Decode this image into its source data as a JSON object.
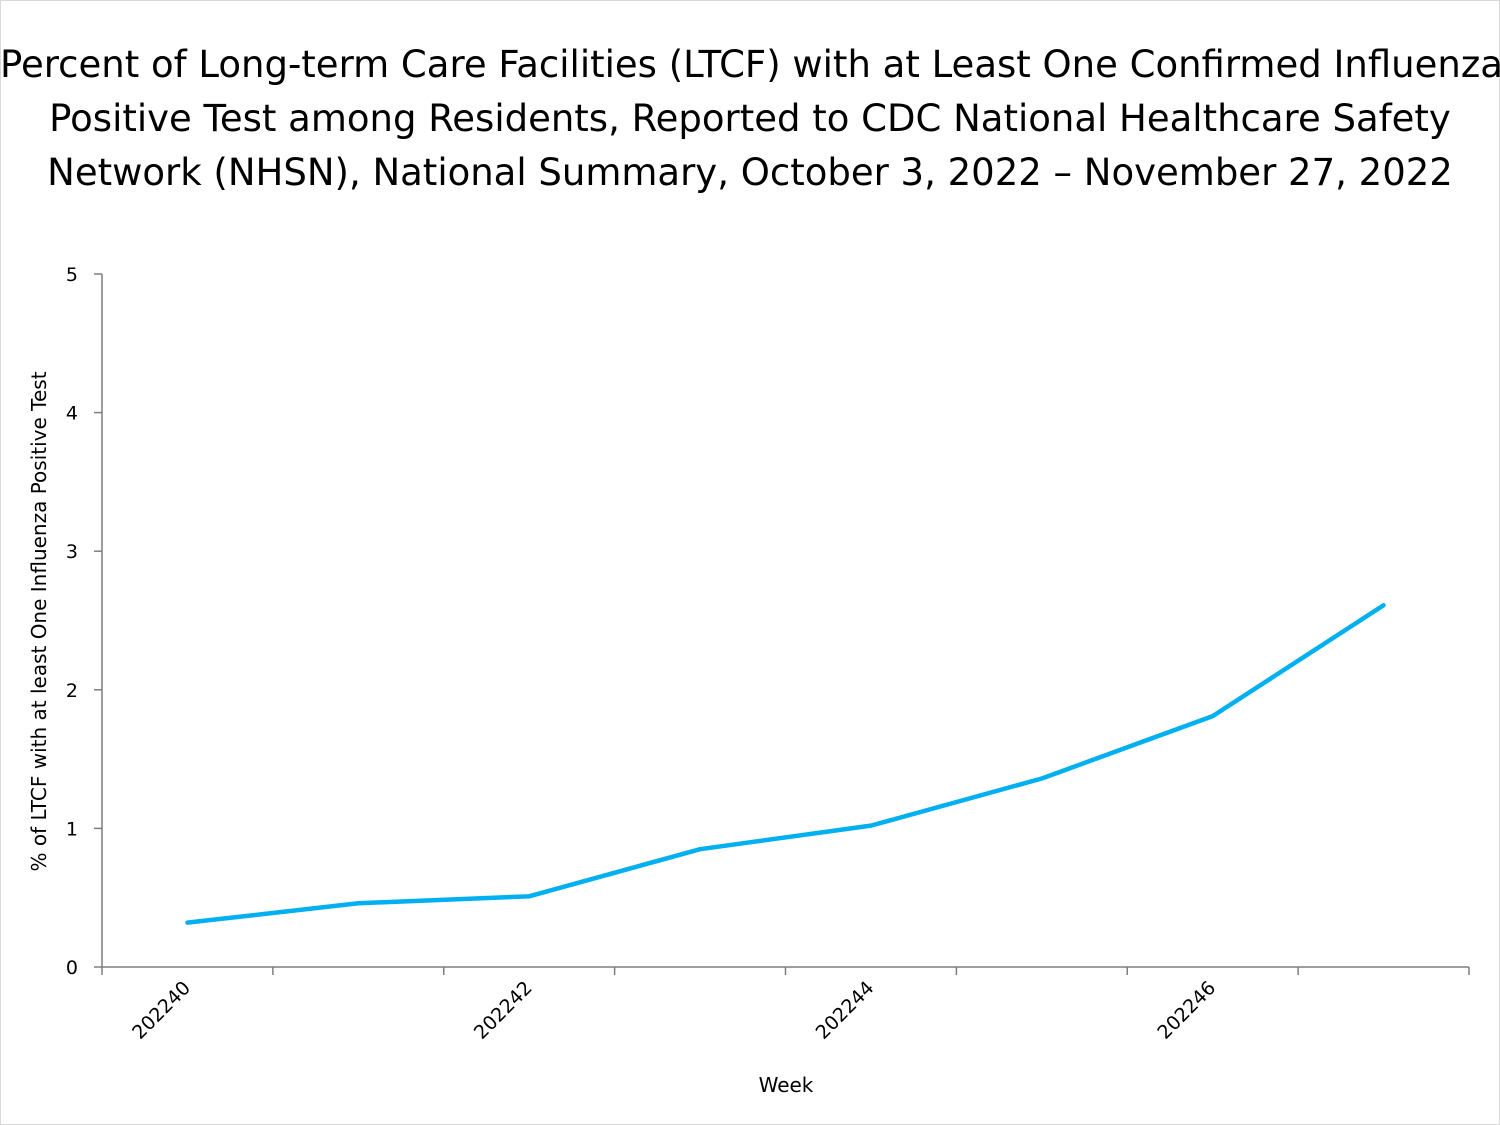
{
  "chart_data": {
    "type": "line",
    "title_lines": [
      "Percent of Long-term Care Facilities (LTCF) with at Least One Confirmed Influenza",
      "Positive Test among Residents, Reported to CDC National Healthcare Safety",
      "Network (NHSN), National Summary, October 3, 2022 – November 27, 2022"
    ],
    "xlabel": "Week",
    "ylabel": "% of LTCF with at least One Influenza Positive Test",
    "ylim": [
      0,
      5
    ],
    "yticks": [
      0,
      1,
      2,
      3,
      4,
      5
    ],
    "x": [
      "202240",
      "202241",
      "202242",
      "202243",
      "202244",
      "202245",
      "202246",
      "202247"
    ],
    "x_tick_labels": [
      "202240",
      "202242",
      "202244",
      "202246"
    ],
    "series": [
      {
        "values": [
          0.32,
          0.46,
          0.51,
          0.85,
          1.02,
          1.36,
          1.81,
          2.61
        ],
        "color": "#00b0f0"
      }
    ],
    "grid": false,
    "legend": "none"
  }
}
